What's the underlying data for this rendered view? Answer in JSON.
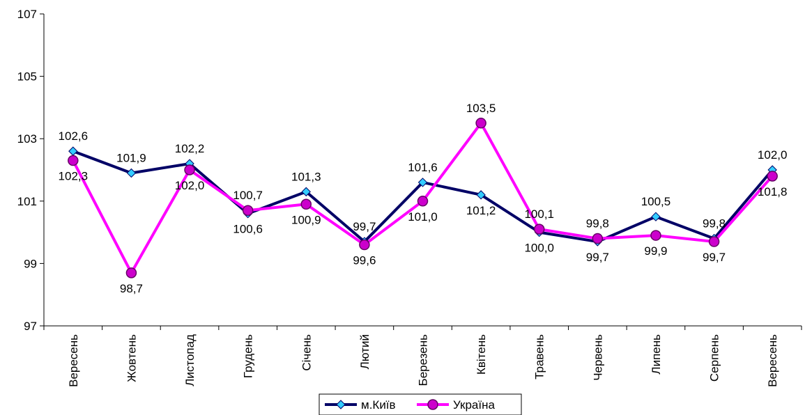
{
  "chart_data": {
    "type": "line",
    "title": "",
    "xlabel": "",
    "ylabel": "",
    "categories": [
      "Вересень",
      "Жовтень",
      "Листопад",
      "Грудень",
      "Січень",
      "Лютий",
      "Березень",
      "Квітень",
      "Травень",
      "Червень",
      "Липень",
      "Серпень",
      "Вересень"
    ],
    "ylim": [
      97,
      107
    ],
    "yticks": [
      97,
      99,
      101,
      103,
      105,
      107
    ],
    "ytick_labels": [
      "97",
      "99",
      "101",
      "103",
      "105",
      "107"
    ],
    "grid": false,
    "legend_position": "bottom-center",
    "series": [
      {
        "name": "м.Київ",
        "color": "#000066",
        "marker_color": "#33ccff",
        "marker": "diamond",
        "values": [
          102.6,
          101.9,
          102.2,
          100.6,
          101.3,
          99.7,
          101.6,
          101.2,
          100.0,
          99.7,
          100.5,
          99.8,
          102.0
        ],
        "labels": [
          "102,6",
          "101,9",
          "102,2",
          "100,6",
          "101,3",
          "99,7",
          "101,6",
          "101,2",
          "100,0",
          "99,7",
          "100,5",
          "99,8",
          "102,0"
        ]
      },
      {
        "name": "Україна",
        "color": "#ff00ff",
        "marker_color": "#cc00cc",
        "marker": "circle",
        "values": [
          102.3,
          98.7,
          102.0,
          100.7,
          100.9,
          99.6,
          101.0,
          103.5,
          100.1,
          99.8,
          99.9,
          99.7,
          101.8
        ],
        "labels": [
          "102,3",
          "98,7",
          "102,0",
          "100,7",
          "100,9",
          "99,6",
          "101,0",
          "103,5",
          "100,1",
          "99,8",
          "99,9",
          "99,7",
          "101,8"
        ]
      }
    ]
  }
}
